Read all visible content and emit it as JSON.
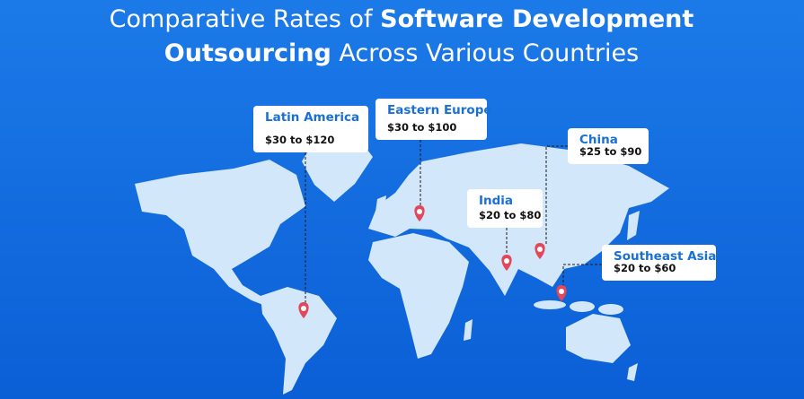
{
  "title": {
    "line1_regular": "Comparative Rates of",
    "line1_bold": "Software Development",
    "line2_bold": "Outsourcing",
    "line2_regular": "Across Various Countries"
  },
  "regions": [
    {
      "name": "Latin America",
      "rate": "$30 to $120"
    },
    {
      "name": "Eastern Europe",
      "rate": "$30 to $100"
    },
    {
      "name": "China",
      "rate": "$25 to $90"
    },
    {
      "name": "India",
      "rate": "$20 to $80"
    },
    {
      "name": "Southeast Asia",
      "rate": "$20 to $60"
    }
  ]
}
